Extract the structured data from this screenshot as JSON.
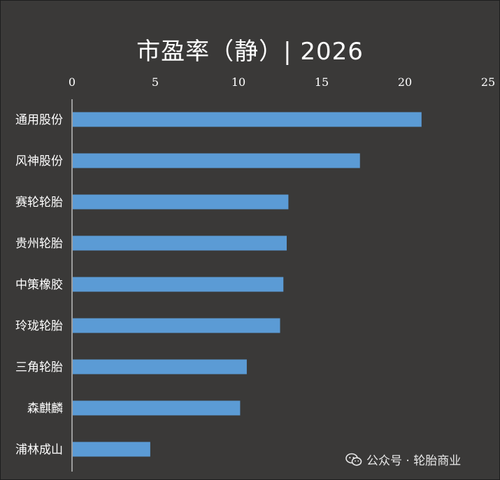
{
  "chart_data": {
    "type": "bar",
    "orientation": "horizontal",
    "title": "市盈率（静）| 2026",
    "categories": [
      "通用股份",
      "风神股份",
      "赛轮轮胎",
      "贵州轮胎",
      "中策橡胶",
      "玲珑轮胎",
      "三角轮胎",
      "森麒麟",
      "浦林成山"
    ],
    "values": [
      21.0,
      17.3,
      13.0,
      12.9,
      12.7,
      12.5,
      10.5,
      10.1,
      4.7
    ],
    "xlim": [
      0,
      25
    ],
    "xticks": [
      0,
      5,
      10,
      15,
      20,
      25
    ],
    "x_axis_position": "top",
    "grid": false,
    "bar_color": "#5b9bd5"
  },
  "watermark": {
    "text": "公众号 · 轮胎商业",
    "icon": "wechat-icon"
  }
}
